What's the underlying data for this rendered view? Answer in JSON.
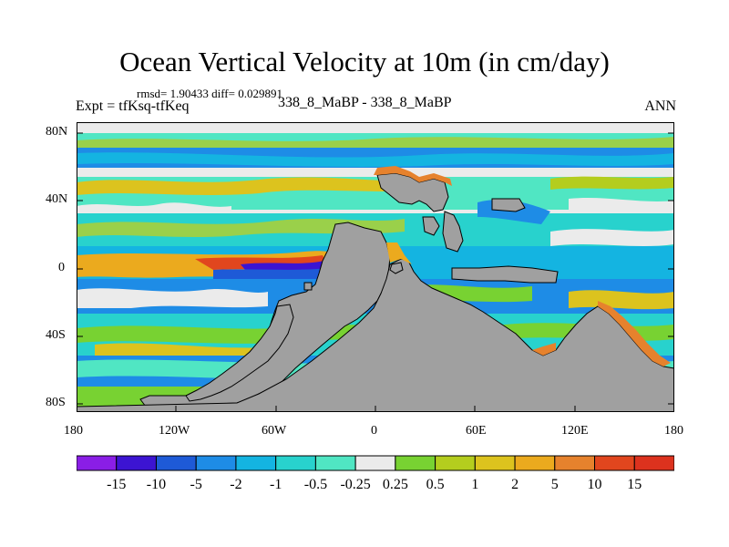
{
  "plot": {
    "title": "Ocean Vertical Velocity at 10m (in cm/day)",
    "stats": "rmsd= 1.90433 diff= 0.029891",
    "left_label": "Expt = tfKsq-tfKeq",
    "center_label": "338_8_MaBP - 338_8_MaBP",
    "right_label": "ANN"
  },
  "axes": {
    "lat_ticks": [
      "80N",
      "40N",
      "0",
      "40S",
      "80S"
    ],
    "lon_ticks": [
      "180",
      "120W",
      "60W",
      "0",
      "60E",
      "120E",
      "180"
    ]
  },
  "colorbar": {
    "labels": [
      "-15",
      "-10",
      "-5",
      "-2",
      "-1",
      "-0.5",
      "-0.25",
      "0.25",
      "0.5",
      "1",
      "2",
      "5",
      "10",
      "15"
    ],
    "colors": [
      "#8a1ee6",
      "#3c14d2",
      "#1e5ad7",
      "#1e8ce6",
      "#14b4e1",
      "#28d2cd",
      "#50e6c3",
      "#ebebeb",
      "#78d232",
      "#b4cd1e",
      "#dcc31e",
      "#ebaa1e",
      "#e6822d",
      "#e1461e",
      "#dc321e"
    ]
  },
  "map": {
    "land_color": "#a0a0a0",
    "background_color": "#ebebeb"
  }
}
